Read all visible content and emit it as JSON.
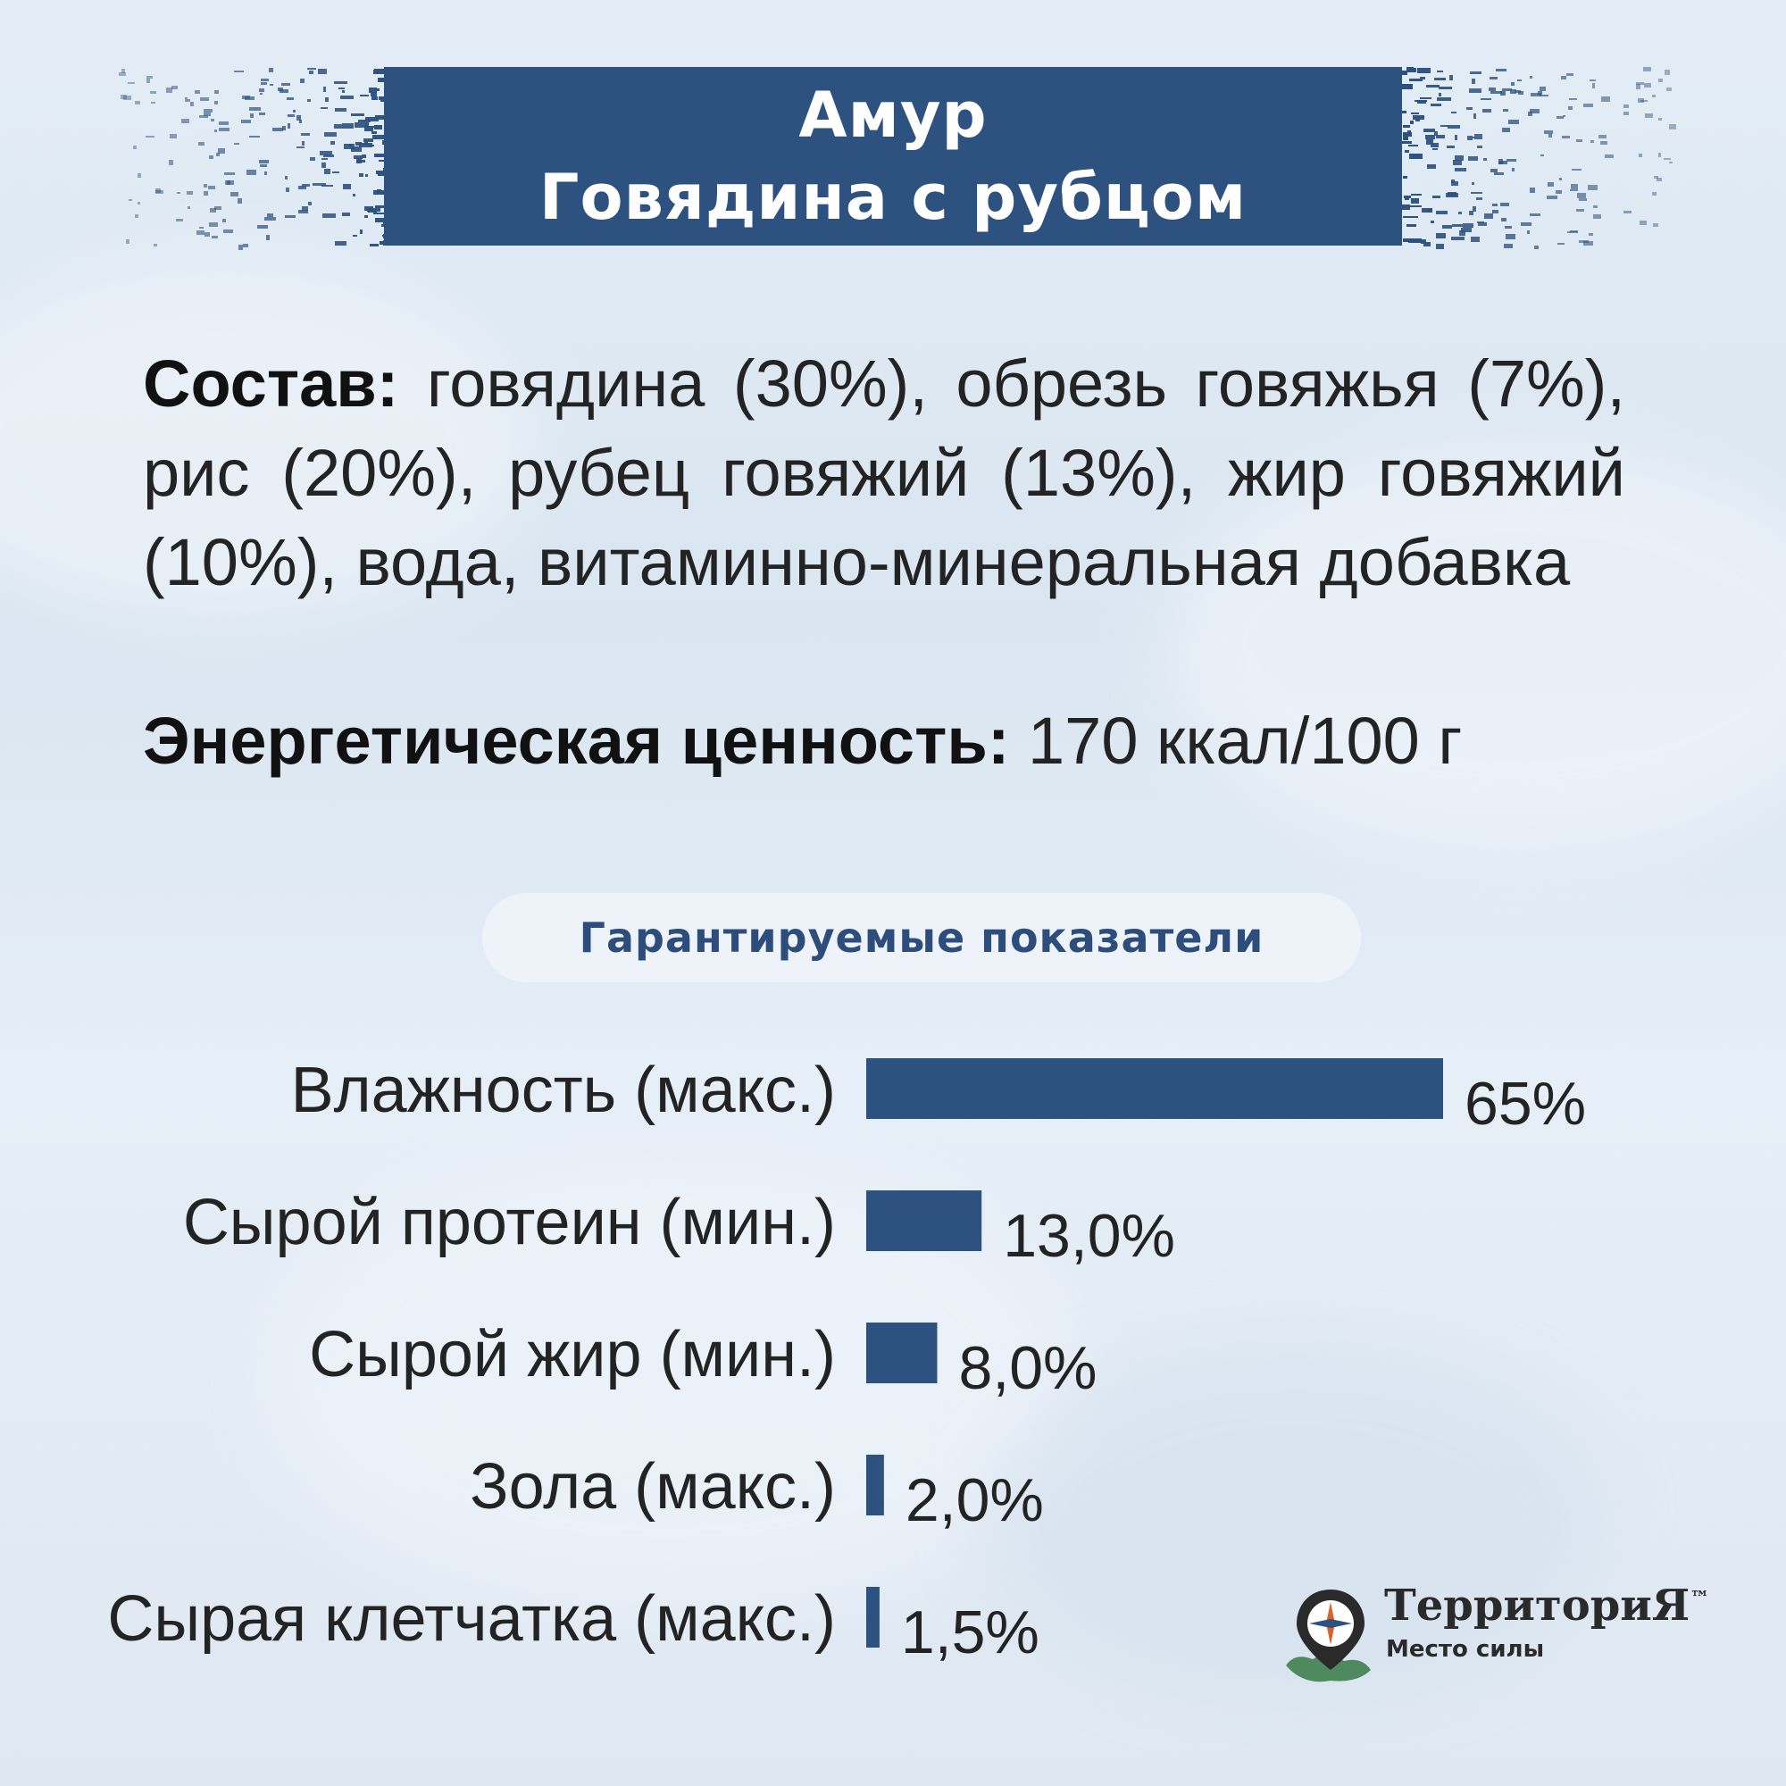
{
  "header": {
    "title_line1": "Амур",
    "title_line2": "Говядина с рубцом"
  },
  "composition": {
    "label": "Состав:",
    "text": "говядина (30%), обрезь говяжья (7%), рис (20%), рубец говяжий (13%), жир говяжий (10%), вода, витаминно-минеральная добавка"
  },
  "energy": {
    "label": "Энергетическая ценность:",
    "value": "170 ккал/100 г"
  },
  "section_title": "Гарантируемые показатели",
  "chart_data": {
    "type": "bar",
    "orientation": "horizontal",
    "categories": [
      "Влажность (макс.)",
      "Сырой протеин (мин.)",
      "Сырой жир (мин.)",
      "Зола (макс.)",
      "Сырая клетчатка (макс.)"
    ],
    "values": [
      65,
      13.0,
      8.0,
      2.0,
      1.5
    ],
    "value_labels": [
      "65%",
      "13,0%",
      "8,0%",
      "2,0%",
      "1,5%"
    ],
    "bar_color": "#2d5280"
  },
  "logo": {
    "name": "ТерриториЯ",
    "tm": "™",
    "tagline": "Место силы"
  },
  "colors": {
    "brand_blue": "#2d5280",
    "text_dark": "#232323"
  }
}
